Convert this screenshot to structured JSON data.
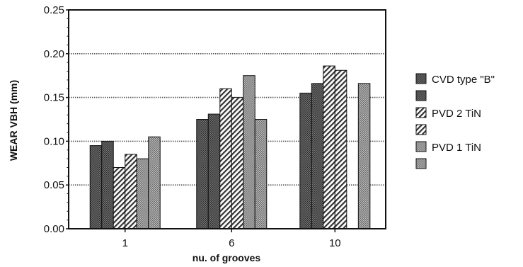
{
  "chart_data": {
    "type": "bar",
    "ylabel": "WEAR VBH (mm)",
    "xlabel": "nu. of grooves",
    "categories": [
      "1",
      "6",
      "10"
    ],
    "ylim": [
      0,
      0.25
    ],
    "yticks": [
      "0.00",
      "0.05",
      "0.10",
      "0.15",
      "0.20",
      "0.25"
    ],
    "grid": true,
    "legend_position": "right",
    "series": [
      {
        "name": "CVD type \"B\"",
        "pattern": "dark-checker",
        "values": [
          0.095,
          0.125,
          0.155
        ]
      },
      {
        "name": "",
        "pattern": "dark-checker",
        "values": [
          0.1,
          0.131,
          0.166
        ]
      },
      {
        "name": "PVD  2 TiN",
        "pattern": "hatch",
        "values": [
          0.07,
          0.16,
          0.186
        ]
      },
      {
        "name": "",
        "pattern": "hatch",
        "values": [
          0.085,
          0.15,
          0.181
        ]
      },
      {
        "name": "PVD 1 TiN",
        "pattern": "light-checker",
        "values": [
          0.08,
          0.175,
          null
        ]
      },
      {
        "name": "",
        "pattern": "light-checker",
        "values": [
          0.105,
          0.125,
          0.166
        ]
      }
    ]
  }
}
